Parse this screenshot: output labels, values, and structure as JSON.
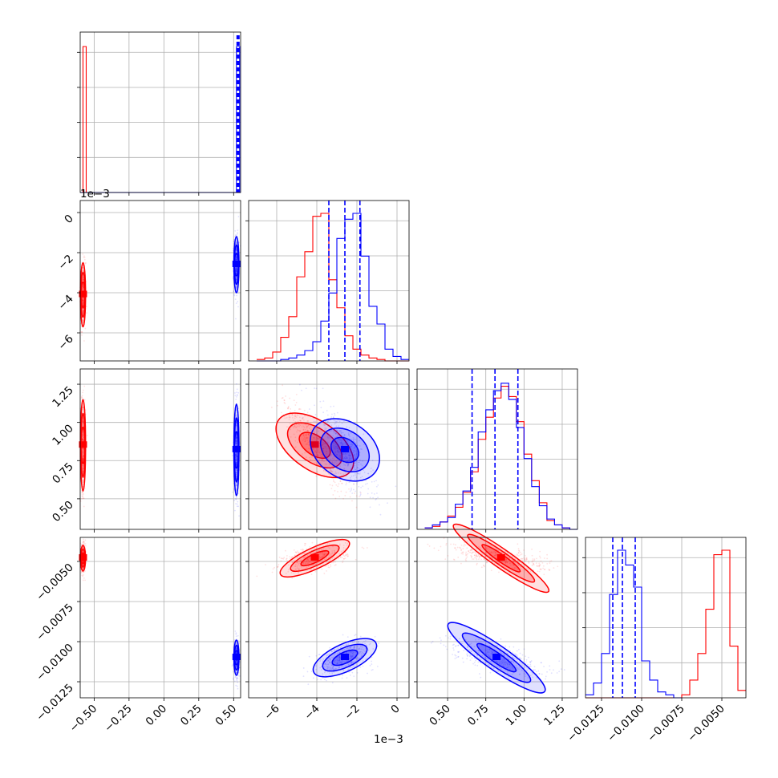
{
  "chart_data": {
    "type": "corner",
    "colors": {
      "run_a": "#ff0000",
      "run_b": "#0000ff"
    },
    "grid": true,
    "ranges": [
      [
        -0.6,
        0.55
      ],
      [
        -0.0074,
        0.0006
      ],
      [
        0.0003,
        0.00135
      ],
      [
        -0.0135,
        -0.0035
      ]
    ],
    "ticks": {
      "x0": {
        "values": [
          -0.5,
          -0.25,
          0.0,
          0.25,
          0.5
        ],
        "labels": [
          "−0.50",
          "−0.25",
          "0.00",
          "0.25",
          "0.50"
        ]
      },
      "x1": {
        "values": [
          -0.006,
          -0.004,
          -0.002,
          0
        ],
        "labels": [
          "−6",
          "−4",
          "−2",
          "0"
        ],
        "scale_label": "1e−3"
      },
      "x2": {
        "values": [
          0.0005,
          0.00075,
          0.001,
          0.00125
        ],
        "labels": [
          "0.50",
          "0.75",
          "1.00",
          "1.25"
        ],
        "scale_label": "1e−3"
      },
      "x3": {
        "values": [
          -0.0125,
          -0.01,
          -0.0075,
          -0.005
        ],
        "labels": [
          "−0.0125",
          "−0.0100",
          "−0.0075",
          "−0.0050"
        ]
      },
      "y1": {
        "values": [
          0,
          -0.002,
          -0.004,
          -0.006
        ],
        "labels": [
          "0",
          "−2",
          "−4",
          "−6"
        ],
        "scale_label": "1e−3"
      },
      "y2": {
        "values": [
          0.00125,
          0.001,
          0.00075,
          0.0005
        ],
        "labels": [
          "1.25",
          "1.00",
          "0.75",
          "0.50"
        ],
        "scale_label": "1e−3"
      },
      "y3": {
        "values": [
          -0.005,
          -0.0075,
          -0.01,
          -0.0125
        ],
        "labels": [
          "−0.0050",
          "−0.0075",
          "−0.0100",
          "−0.0125"
        ]
      }
    },
    "series": [
      {
        "key": "run_a",
        "color": "#ff0000",
        "params": [
          {
            "mean": -0.58,
            "std": 0.0
          },
          {
            "mean": -0.0041,
            "std": 0.0008
          },
          {
            "mean": 0.00085,
            "std": 0.00015
          },
          {
            "mean": -0.0048,
            "std": 0.0004
          }
        ],
        "correlations": {
          "1-2": -0.9,
          "1-3": 0.4,
          "2-3": -0.6
        },
        "histograms": {
          "p1": {
            "edges": [
              -0.007,
              -0.0066,
              -0.0062,
              -0.0058,
              -0.0054,
              -0.005,
              -0.0046,
              -0.0042,
              -0.0038,
              -0.0034,
              -0.003,
              -0.0026,
              -0.0022,
              -0.0018,
              -0.0014,
              -0.001,
              -0.0006,
              -0.0002,
              0.0002,
              0.0006
            ],
            "counts": [
              0.01,
              0.02,
              0.06,
              0.16,
              0.3,
              0.57,
              0.74,
              0.98,
              1.0,
              0.55,
              0.36,
              0.17,
              0.08,
              0.04,
              0.02,
              0.01,
              0.0,
              0.0,
              0.0
            ]
          },
          "p2": {
            "edges": [
              0.00035,
              0.0004,
              0.00045,
              0.0005,
              0.00055,
              0.0006,
              0.00065,
              0.0007,
              0.00075,
              0.0008,
              0.00085,
              0.0009,
              0.00095,
              0.001,
              0.00105,
              0.0011,
              0.00115,
              0.0012,
              0.00125,
              0.0013,
              0.00135
            ],
            "counts": [
              0.01,
              0.02,
              0.05,
              0.09,
              0.15,
              0.25,
              0.39,
              0.61,
              0.76,
              0.89,
              0.97,
              0.9,
              0.73,
              0.51,
              0.33,
              0.18,
              0.06,
              0.03,
              0.01,
              0.0
            ]
          },
          "p3": {
            "edges": [
              -0.0135,
              -0.0075,
              -0.007,
              -0.0065,
              -0.006,
              -0.0055,
              -0.005,
              -0.0045,
              -0.004,
              -0.0035
            ],
            "counts": [
              0.0,
              0.02,
              0.12,
              0.3,
              0.6,
              0.97,
              1.0,
              0.35,
              0.05
            ]
          }
        }
      },
      {
        "key": "run_b",
        "color": "#0000ff",
        "params": [
          {
            "mean": 0.52,
            "std": 0.0
          },
          {
            "mean": -0.0026,
            "std": 0.0007
          },
          {
            "mean": 0.00082,
            "std": 0.00015
          },
          {
            "mean": -0.011,
            "std": 0.00055
          }
        ],
        "correlations": {
          "1-2": -0.8,
          "1-3": 0.5,
          "2-3": -0.65
        },
        "histograms": {
          "p1": {
            "edges": [
              -0.007,
              -0.0066,
              -0.0062,
              -0.0058,
              -0.0054,
              -0.005,
              -0.0046,
              -0.0042,
              -0.0038,
              -0.0034,
              -0.003,
              -0.0026,
              -0.0022,
              -0.0018,
              -0.0014,
              -0.001,
              -0.0006,
              -0.0002,
              0.0002,
              0.0006
            ],
            "counts": [
              0.0,
              0.0,
              0.0,
              0.01,
              0.02,
              0.04,
              0.07,
              0.13,
              0.27,
              0.46,
              0.83,
              0.96,
              1.0,
              0.71,
              0.37,
              0.25,
              0.08,
              0.03,
              0.01
            ]
          },
          "p2": {
            "edges": [
              0.00035,
              0.0004,
              0.00045,
              0.0005,
              0.00055,
              0.0006,
              0.00065,
              0.0007,
              0.00075,
              0.0008,
              0.00085,
              0.0009,
              0.00095,
              0.001,
              0.00105,
              0.0011,
              0.00115,
              0.0012,
              0.00125,
              0.0013,
              0.00135
            ],
            "counts": [
              0.01,
              0.03,
              0.05,
              0.08,
              0.17,
              0.26,
              0.42,
              0.66,
              0.81,
              0.94,
              0.99,
              0.88,
              0.69,
              0.48,
              0.29,
              0.16,
              0.07,
              0.03,
              0.01,
              0.0
            ]
          },
          "p3": {
            "edges": [
              -0.0135,
              -0.013,
              -0.0125,
              -0.012,
              -0.0115,
              -0.011,
              -0.0105,
              -0.01,
              -0.0095,
              -0.009,
              -0.0085,
              -0.008,
              -0.0075
            ],
            "counts": [
              0.02,
              0.1,
              0.3,
              0.7,
              1.0,
              0.9,
              0.75,
              0.25,
              0.12,
              0.04,
              0.02,
              0.0
            ]
          }
        },
        "quantiles": {
          "p1": [
            -0.0034,
            -0.0026,
            -0.00185
          ],
          "p2": [
            0.00066,
            0.00081,
            0.00096
          ],
          "p3": [
            -0.0118,
            -0.0112,
            -0.0104
          ]
        }
      }
    ]
  }
}
